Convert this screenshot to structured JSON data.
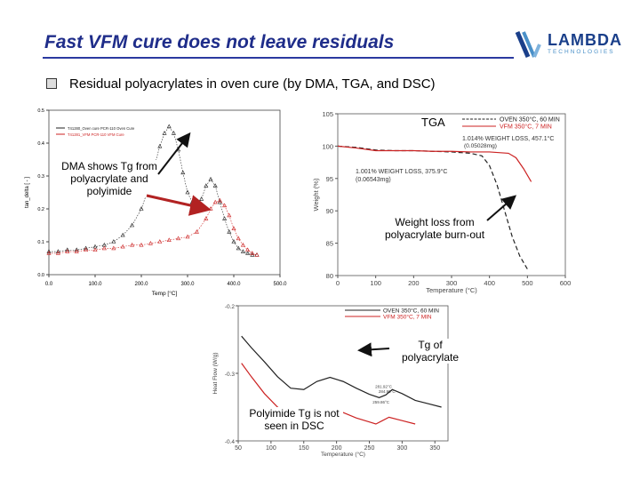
{
  "header": {
    "title": "Fast VFM cure does not leave residuals",
    "logo_name": "LAMBDA",
    "logo_sub": "TECHNOLOGIES",
    "bullet": "Residual polyacrylates in oven cure (by DMA, TGA, and DSC)"
  },
  "annotations": {
    "tga": "TGA",
    "dma_note": [
      "DMA shows Tg from",
      "polyacrylate and",
      "polyimide"
    ],
    "weightloss_note": [
      "Weight loss from",
      "polyacrylate burn-out"
    ],
    "tg_poly_note": [
      "Tg of",
      "polyacrylate"
    ],
    "dsc_note": [
      "Polyimide Tg is not",
      "seen in DSC"
    ]
  },
  "chart_data": [
    {
      "id": "dma",
      "type": "scatter",
      "xlabel": "Temp [°C]",
      "ylabel": "tan_delta [ - ]",
      "xlim": [
        0,
        500
      ],
      "ylim": [
        0.0,
        0.5
      ],
      "xticks": [
        "0.0",
        "100.0",
        "200.0",
        "300.0",
        "400.0",
        "500.0"
      ],
      "yticks": [
        "0.0",
        "0.1",
        "0.2",
        "0.3",
        "0.4",
        "0.5"
      ],
      "legend": [
        "T41280_Oven cure PCR-110 Oven Cure",
        "T41281_VFM PCR-110 VFM Cure"
      ],
      "series": [
        {
          "name": "Oven cure",
          "color": "#222222",
          "x": [
            0,
            20,
            40,
            60,
            80,
            100,
            120,
            140,
            160,
            180,
            200,
            210,
            220,
            230,
            240,
            250,
            260,
            270,
            280,
            290,
            300,
            310,
            320,
            330,
            340,
            350,
            360,
            370,
            380,
            390,
            400,
            410,
            420,
            430,
            440,
            450
          ],
          "y": [
            0.07,
            0.07,
            0.075,
            0.075,
            0.08,
            0.085,
            0.09,
            0.1,
            0.12,
            0.15,
            0.2,
            0.24,
            0.29,
            0.34,
            0.39,
            0.43,
            0.45,
            0.43,
            0.38,
            0.31,
            0.25,
            0.22,
            0.21,
            0.23,
            0.27,
            0.29,
            0.27,
            0.22,
            0.17,
            0.13,
            0.1,
            0.08,
            0.07,
            0.065,
            0.06,
            0.06
          ]
        },
        {
          "name": "VFM cure",
          "color": "#cc2222",
          "x": [
            0,
            20,
            40,
            60,
            80,
            100,
            120,
            140,
            160,
            180,
            200,
            220,
            240,
            260,
            280,
            300,
            320,
            340,
            350,
            360,
            370,
            380,
            390,
            400,
            410,
            420,
            430,
            440,
            450
          ],
          "y": [
            0.065,
            0.065,
            0.07,
            0.07,
            0.075,
            0.075,
            0.08,
            0.08,
            0.085,
            0.09,
            0.09,
            0.095,
            0.1,
            0.105,
            0.11,
            0.115,
            0.13,
            0.17,
            0.2,
            0.22,
            0.225,
            0.21,
            0.18,
            0.14,
            0.11,
            0.09,
            0.075,
            0.065,
            0.06
          ]
        }
      ]
    },
    {
      "id": "tga",
      "type": "line",
      "xlabel": "Temperature (°C)",
      "ylabel": "Weight (%)",
      "xlim": [
        0,
        600
      ],
      "ylim": [
        80,
        105
      ],
      "xticks": [
        "0",
        "100",
        "200",
        "300",
        "400",
        "500",
        "600"
      ],
      "yticks": [
        "80",
        "85",
        "90",
        "95",
        "100",
        "105"
      ],
      "legend": [
        "OVEN 350°C, 60 MIN",
        "VFM 350°C, 7 MIN"
      ],
      "data_labels": [
        "1.014%  WEIGHT LOSS, 457.1°C",
        "(0.05028mg)",
        "1.001%  WEIGHT LOSS, 375.9°C",
        "(0.06543mg)"
      ],
      "series": [
        {
          "name": "OVEN 350°C, 60 MIN",
          "color": "#222222",
          "style": "dashed",
          "x": [
            0,
            50,
            100,
            150,
            200,
            250,
            300,
            350,
            380,
            400,
            420,
            440,
            460,
            480,
            500
          ],
          "y": [
            100.0,
            99.8,
            99.4,
            99.3,
            99.3,
            99.2,
            99.1,
            98.9,
            98.5,
            97.0,
            94.0,
            90.0,
            86.0,
            83.0,
            81.0
          ]
        },
        {
          "name": "VFM 350°C, 7 MIN",
          "color": "#cc2222",
          "style": "solid",
          "x": [
            0,
            50,
            100,
            150,
            200,
            250,
            300,
            350,
            400,
            450,
            470,
            490,
            510
          ],
          "y": [
            100.0,
            99.7,
            99.3,
            99.3,
            99.3,
            99.2,
            99.2,
            99.1,
            99.1,
            98.9,
            98.2,
            96.5,
            94.5
          ]
        }
      ]
    },
    {
      "id": "dsc",
      "type": "line",
      "xlabel": "Temperature (°C)",
      "ylabel": "Heat Flow (W/g)",
      "xlim": [
        50,
        370
      ],
      "ylim": [
        -0.4,
        -0.2
      ],
      "xticks": [
        "50",
        "100",
        "150",
        "200",
        "250",
        "300",
        "350"
      ],
      "yticks": [
        "-0.2",
        "-0.3",
        "-0.4"
      ],
      "legend": [
        "OVEN 350°C, 60 MIN",
        "VFM 350°C, 7 MIN"
      ],
      "data_labels": [
        "281.92°C",
        "284.90°C",
        "259.86°C"
      ],
      "series": [
        {
          "name": "OVEN 350°C, 60 MIN",
          "color": "#222222",
          "x": [
            55,
            70,
            90,
            110,
            130,
            150,
            170,
            190,
            210,
            230,
            250,
            265,
            275,
            285,
            300,
            320,
            340,
            360
          ],
          "y": [
            -0.245,
            -0.262,
            -0.283,
            -0.305,
            -0.322,
            -0.324,
            -0.312,
            -0.306,
            -0.312,
            -0.322,
            -0.331,
            -0.336,
            -0.332,
            -0.324,
            -0.33,
            -0.34,
            -0.345,
            -0.35
          ]
        },
        {
          "name": "VFM 350°C, 7 MIN",
          "color": "#cc2222",
          "x": [
            55,
            70,
            90,
            110,
            130,
            150,
            170,
            190,
            210,
            230,
            250,
            260,
            270,
            280,
            300,
            320
          ],
          "y": [
            -0.285,
            -0.305,
            -0.33,
            -0.35,
            -0.365,
            -0.367,
            -0.357,
            -0.352,
            -0.358,
            -0.366,
            -0.372,
            -0.375,
            -0.37,
            -0.365,
            -0.37,
            -0.375
          ]
        }
      ]
    }
  ]
}
